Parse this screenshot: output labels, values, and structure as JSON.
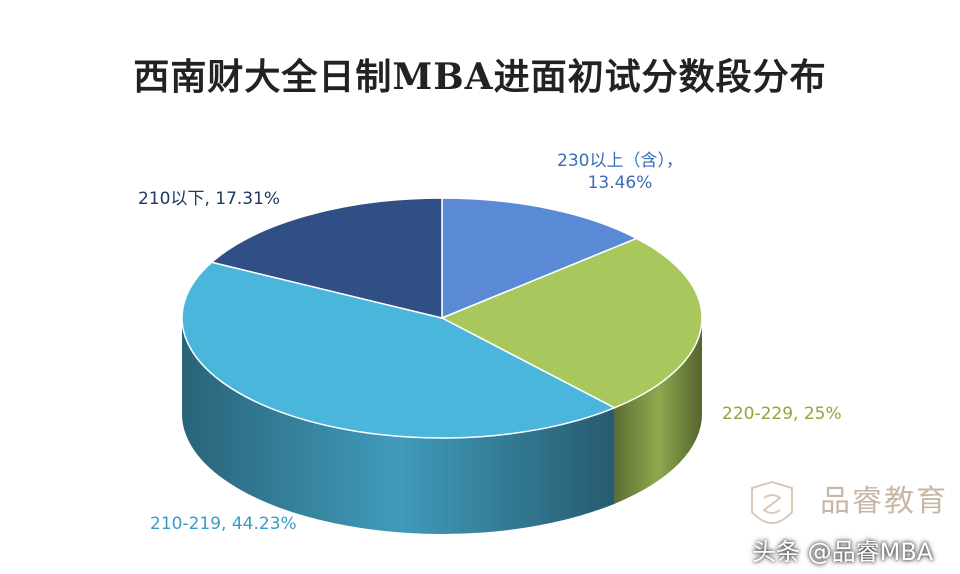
{
  "chart_data": {
    "type": "pie",
    "title": "西南财大全日制MBA进面初试分数段分布",
    "slices": [
      {
        "label": "230以上（含），",
        "percent_text": "13.46%",
        "value": 13.46,
        "color": "#5a8ad6"
      },
      {
        "label": "220-229, ",
        "percent_text": "25%",
        "value": 25.0,
        "color": "#a8c75c"
      },
      {
        "label": "210-219, ",
        "percent_text": "44.23%",
        "value": 44.23,
        "color": "#4bb6dc"
      },
      {
        "label": "210以下, ",
        "percent_text": "17.31%",
        "value": 17.31,
        "color": "#2f4f85"
      }
    ],
    "legend": "none",
    "style": "3d"
  },
  "watermark": {
    "brand": "品睿教育",
    "credit": "头条 @品睿MBA"
  }
}
